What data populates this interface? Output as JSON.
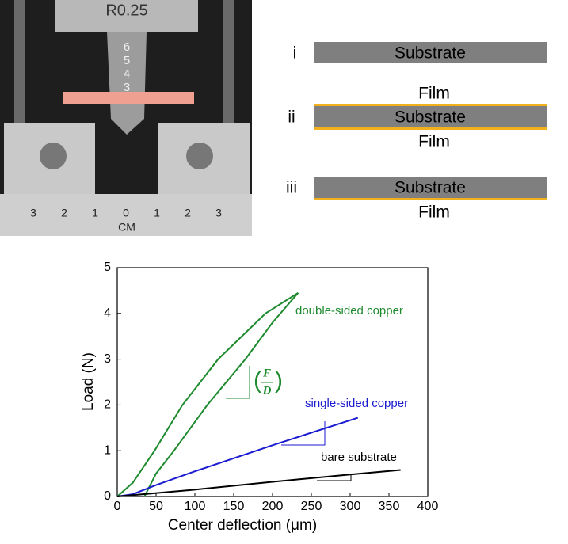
{
  "photo": {
    "labels": [
      "R0.25",
      "6",
      "5",
      "4",
      "3",
      "CM"
    ],
    "ruler": [
      "3",
      "2",
      "1",
      "0",
      "1",
      "2",
      "3"
    ]
  },
  "diagram": {
    "layers": [
      {
        "label": "i",
        "substrate": "Substrate"
      },
      {
        "label": "ii",
        "substrate": "Substrate",
        "film_top": "Film",
        "film_bottom": "Film"
      },
      {
        "label": "iii",
        "substrate": "Substrate",
        "film_bottom": "Film"
      }
    ]
  },
  "chart_data": {
    "type": "line",
    "xlabel": "Center deflection (μm)",
    "ylabel": "Load (N)",
    "xlim": [
      0,
      400
    ],
    "ylim": [
      0,
      5
    ],
    "xticks": [
      0,
      50,
      100,
      150,
      200,
      250,
      300,
      350,
      400
    ],
    "yticks": [
      0,
      1,
      2,
      3,
      4,
      5
    ],
    "slope_label": {
      "numerator": "F",
      "denominator": "D"
    },
    "series": [
      {
        "name": "double-sided copper",
        "color": "#1e8a2e",
        "x": [
          0,
          20,
          48,
          84,
          130,
          191,
          233,
          200,
          165,
          116,
          73,
          50,
          35
        ],
        "values": [
          0,
          0.3,
          1,
          2,
          3,
          4,
          4.45,
          3.8,
          3,
          2,
          1,
          0.5,
          0
        ]
      },
      {
        "name": "single-sided copper",
        "color": "#1a1ad0",
        "x": [
          0,
          20,
          50,
          100,
          200,
          310
        ],
        "values": [
          0,
          0.05,
          0.25,
          0.55,
          1.12,
          1.72
        ]
      },
      {
        "name": "bare substrate",
        "color": "#000000",
        "x": [
          0,
          100,
          200,
          300,
          365
        ],
        "values": [
          0,
          0.15,
          0.32,
          0.48,
          0.58
        ]
      }
    ]
  }
}
